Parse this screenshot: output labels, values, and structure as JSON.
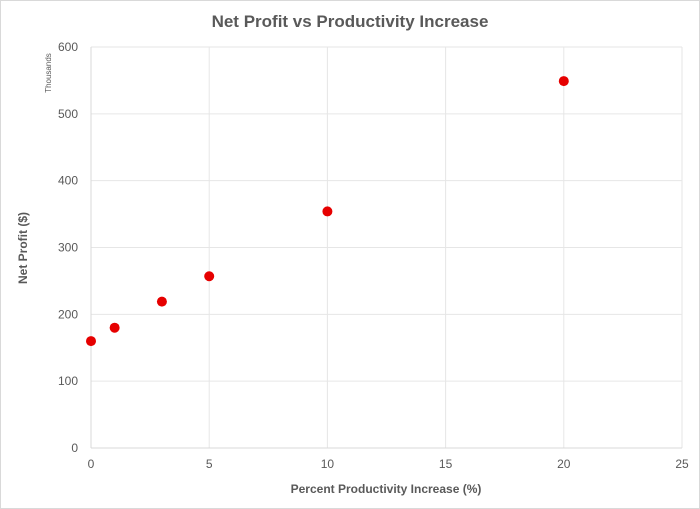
{
  "chart_data": {
    "type": "scatter",
    "title": "Net Profit vs Productivity Increase",
    "xlabel": "Percent Productivity Increase (%)",
    "ylabel": "Net Profit ($)",
    "y_unit_label": "Thousands",
    "xlim": [
      0,
      25
    ],
    "ylim": [
      0,
      600
    ],
    "x_ticks": [
      0,
      5,
      10,
      15,
      20,
      25
    ],
    "y_ticks": [
      0,
      100,
      200,
      300,
      400,
      500,
      600
    ],
    "grid": true,
    "legend": "none",
    "marker_color": "#e60000",
    "series": [
      {
        "x": [
          0,
          1,
          3,
          5,
          10,
          20
        ],
        "y": [
          160,
          180,
          219,
          257,
          354,
          549
        ]
      }
    ]
  }
}
